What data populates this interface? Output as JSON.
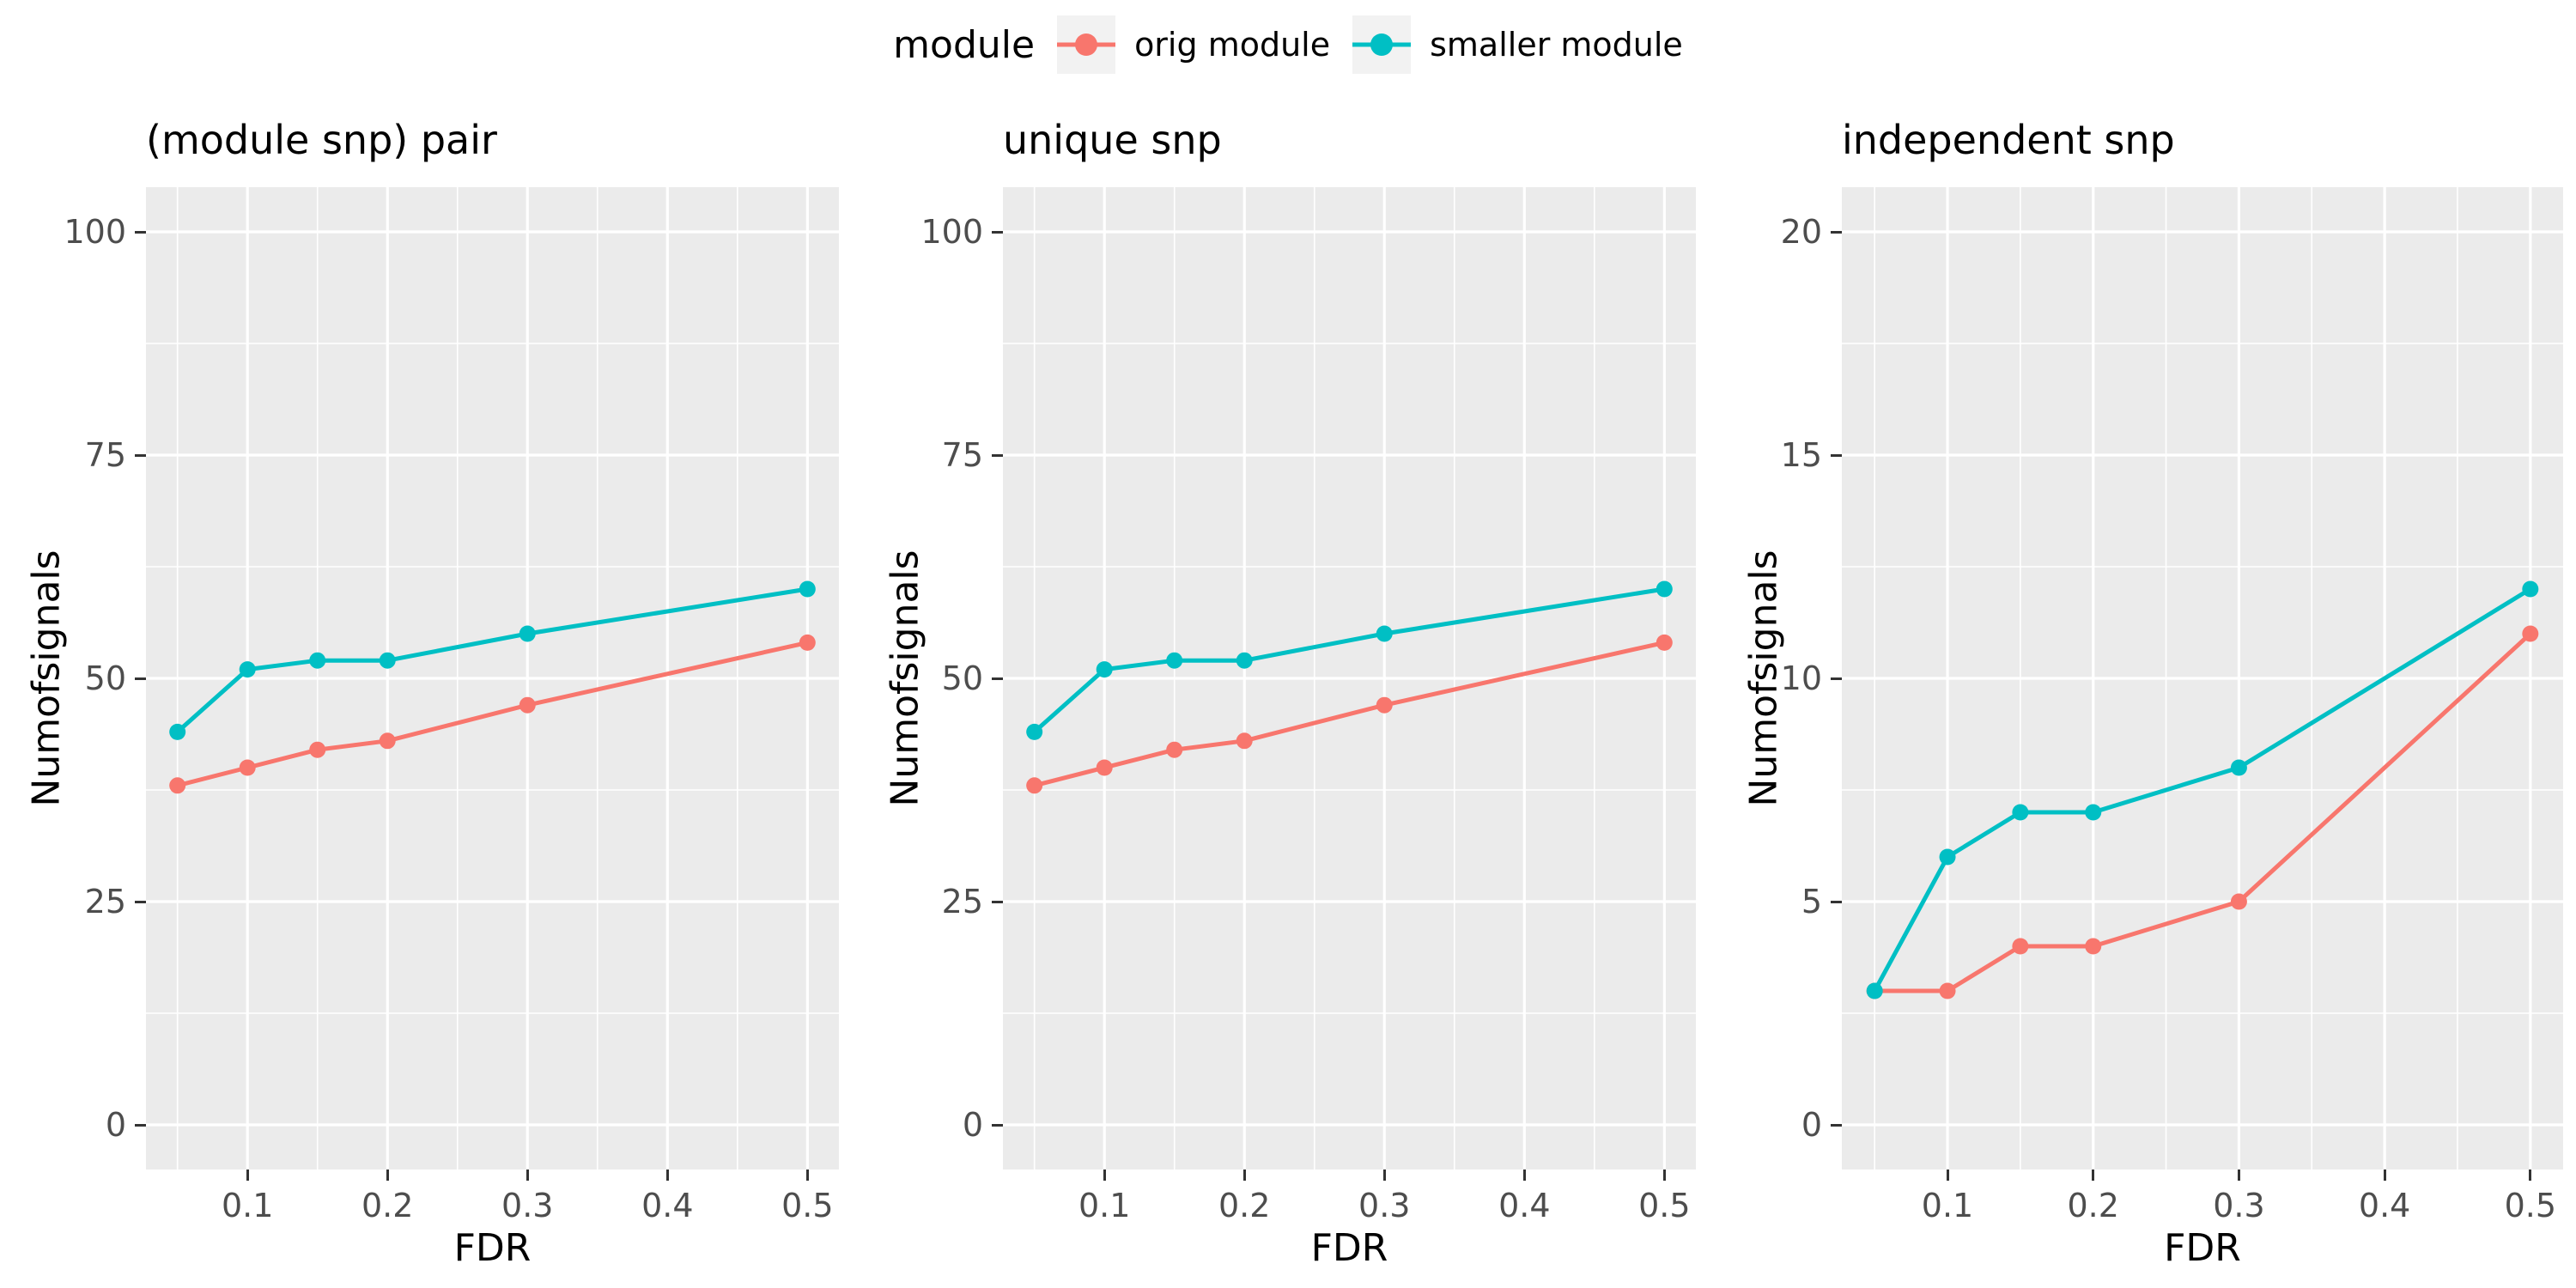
{
  "figure": {
    "background": "#FFFFFF",
    "panel_background": "#EBEBEB",
    "grid_color": "#FFFFFF",
    "tick_label_color": "#4D4D4D",
    "tick_mark_color": "#333333",
    "legend_key_background": "#F2F2F2"
  },
  "legend": {
    "title": "module",
    "entries": [
      {
        "label": "orig module",
        "color": "#F8766D"
      },
      {
        "label": "smaller module",
        "color": "#00BFC4"
      }
    ]
  },
  "chart_data": [
    {
      "type": "line",
      "title": "(module snp) pair",
      "xlabel": "FDR",
      "ylabel": "Numofsignals",
      "x": [
        0.05,
        0.1,
        0.15,
        0.2,
        0.3,
        0.5
      ],
      "series": [
        {
          "name": "orig module",
          "color": "#F8766D",
          "values": [
            38,
            40,
            42,
            43,
            47,
            54
          ]
        },
        {
          "name": "smaller module",
          "color": "#00BFC4",
          "values": [
            44,
            51,
            52,
            52,
            55,
            60
          ]
        }
      ],
      "xticks": [
        0.1,
        0.2,
        0.3,
        0.4,
        0.5
      ],
      "yticks": [
        0,
        25,
        50,
        75,
        100
      ],
      "x_minor": [
        0.05,
        0.15,
        0.25,
        0.35,
        0.45
      ],
      "y_minor": [
        12.5,
        37.5,
        62.5,
        87.5
      ],
      "xlim": [
        0.0275,
        0.5225
      ],
      "ylim": [
        -5,
        105
      ],
      "grid": true,
      "legend_position": "top"
    },
    {
      "type": "line",
      "title": "unique snp",
      "xlabel": "FDR",
      "ylabel": "Numofsignals",
      "x": [
        0.05,
        0.1,
        0.15,
        0.2,
        0.3,
        0.5
      ],
      "series": [
        {
          "name": "orig module",
          "color": "#F8766D",
          "values": [
            38,
            40,
            42,
            43,
            47,
            54
          ]
        },
        {
          "name": "smaller module",
          "color": "#00BFC4",
          "values": [
            44,
            51,
            52,
            52,
            55,
            60
          ]
        }
      ],
      "xticks": [
        0.1,
        0.2,
        0.3,
        0.4,
        0.5
      ],
      "yticks": [
        0,
        25,
        50,
        75,
        100
      ],
      "x_minor": [
        0.05,
        0.15,
        0.25,
        0.35,
        0.45
      ],
      "y_minor": [
        12.5,
        37.5,
        62.5,
        87.5
      ],
      "xlim": [
        0.0275,
        0.5225
      ],
      "ylim": [
        -5,
        105
      ],
      "grid": true,
      "legend_position": "top"
    },
    {
      "type": "line",
      "title": "independent snp",
      "xlabel": "FDR",
      "ylabel": "Numofsignals",
      "x": [
        0.05,
        0.1,
        0.15,
        0.2,
        0.3,
        0.5
      ],
      "series": [
        {
          "name": "orig module",
          "color": "#F8766D",
          "values": [
            3,
            3,
            4,
            4,
            5,
            11
          ]
        },
        {
          "name": "smaller module",
          "color": "#00BFC4",
          "values": [
            3,
            6,
            7,
            7,
            8,
            12
          ]
        }
      ],
      "xticks": [
        0.1,
        0.2,
        0.3,
        0.4,
        0.5
      ],
      "yticks": [
        0,
        5,
        10,
        15,
        20
      ],
      "x_minor": [
        0.05,
        0.15,
        0.25,
        0.35,
        0.45
      ],
      "y_minor": [
        2.5,
        7.5,
        12.5,
        17.5
      ],
      "xlim": [
        0.0275,
        0.5225
      ],
      "ylim": [
        -1,
        21
      ],
      "grid": true,
      "legend_position": "top"
    }
  ]
}
